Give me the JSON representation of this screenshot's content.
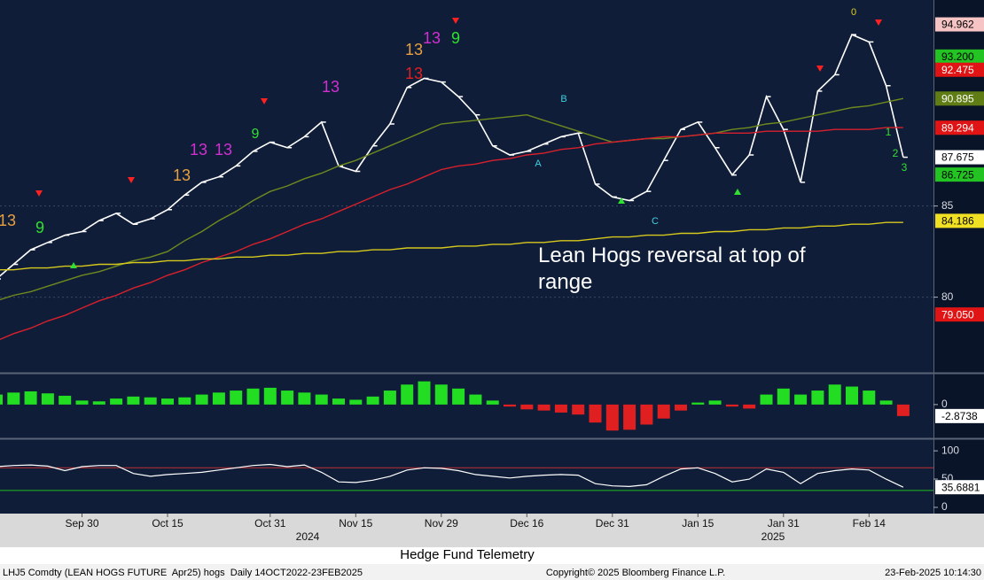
{
  "chart_data": [
    {
      "type": "line",
      "categories": [
        null,
        null,
        null,
        null,
        null,
        "Sep 30",
        null,
        null,
        null,
        null,
        "Oct 15",
        null,
        null,
        null,
        null,
        null,
        "Oct 31",
        null,
        null,
        null,
        null,
        "Nov 15",
        null,
        null,
        null,
        null,
        "Nov 29",
        null,
        null,
        null,
        null,
        "Dec 16",
        null,
        null,
        null,
        null,
        "Dec 31",
        null,
        null,
        null,
        null,
        "Jan 15",
        null,
        null,
        null,
        null,
        "Jan 31",
        null,
        null,
        null,
        null,
        "Feb 14",
        null,
        null
      ],
      "year_labels": [
        "2024",
        "2025"
      ],
      "series": [
        {
          "color": "#ffffff",
          "values": [
            81.0,
            81.8,
            82.6,
            83.0,
            83.4,
            83.6,
            84.2,
            84.6,
            84.0,
            84.3,
            84.8,
            85.6,
            86.3,
            86.6,
            87.2,
            88.0,
            88.5,
            88.2,
            88.8,
            89.6,
            87.2,
            86.9,
            88.3,
            89.5,
            91.5,
            92.0,
            91.8,
            91.0,
            90.0,
            88.3,
            87.8,
            88.0,
            88.4,
            88.8,
            89.0,
            86.2,
            85.5,
            85.3,
            85.8,
            87.5,
            89.2,
            89.6,
            88.2,
            86.7,
            87.8,
            91.0,
            89.2,
            86.3,
            91.3,
            92.2,
            94.4,
            94.0,
            91.6,
            87.675
          ]
        },
        {
          "color": "#6f8a1e",
          "values": [
            79.8,
            80.1,
            80.3,
            80.6,
            80.9,
            81.2,
            81.4,
            81.7,
            82.0,
            82.2,
            82.5,
            83.1,
            83.6,
            84.2,
            84.7,
            85.3,
            85.8,
            86.1,
            86.5,
            86.8,
            87.2,
            87.5,
            87.9,
            88.3,
            88.7,
            89.1,
            89.5,
            89.6,
            89.7,
            89.8,
            89.9,
            90.0,
            89.7,
            89.4,
            89.1,
            88.8,
            88.5,
            88.6,
            88.7,
            88.7,
            88.8,
            88.9,
            89.0,
            89.2,
            89.3,
            89.5,
            89.6,
            89.8,
            90.0,
            90.2,
            90.4,
            90.5,
            90.7,
            90.9
          ]
        },
        {
          "color": "#d8202c",
          "values": [
            77.6,
            78.0,
            78.3,
            78.7,
            79.0,
            79.4,
            79.8,
            80.1,
            80.5,
            80.8,
            81.2,
            81.5,
            81.9,
            82.2,
            82.5,
            82.9,
            83.2,
            83.6,
            84.0,
            84.3,
            84.7,
            85.1,
            85.5,
            85.9,
            86.2,
            86.6,
            87.0,
            87.2,
            87.3,
            87.5,
            87.6,
            87.8,
            87.9,
            88.1,
            88.2,
            88.4,
            88.5,
            88.6,
            88.7,
            88.8,
            88.8,
            88.9,
            89.0,
            89.0,
            89.0,
            89.1,
            89.1,
            89.1,
            89.1,
            89.2,
            89.2,
            89.2,
            89.3,
            89.3
          ]
        },
        {
          "color": "#d6c81c",
          "values": [
            81.5,
            81.5,
            81.6,
            81.6,
            81.7,
            81.7,
            81.8,
            81.8,
            81.9,
            81.9,
            82.0,
            82.0,
            82.1,
            82.1,
            82.2,
            82.2,
            82.3,
            82.3,
            82.4,
            82.4,
            82.5,
            82.5,
            82.6,
            82.6,
            82.7,
            82.7,
            82.7,
            82.8,
            82.8,
            82.9,
            82.9,
            83.0,
            83.0,
            83.1,
            83.1,
            83.2,
            83.3,
            83.3,
            83.4,
            83.4,
            83.5,
            83.5,
            83.6,
            83.6,
            83.7,
            83.7,
            83.8,
            83.8,
            83.9,
            83.9,
            84.0,
            84.0,
            84.1,
            84.1
          ]
        }
      ],
      "ylim": [
        75.9,
        96.3
      ],
      "yticks": [
        80,
        85
      ],
      "grid": true,
      "flags": [
        94.962,
        {
          "value": 93.2,
          "label": "93.200"
        },
        92.475,
        90.895,
        89.294,
        87.675,
        86.725,
        84.186,
        {
          "value": 79.05,
          "label": "79.050"
        }
      ],
      "flag_colors": [
        "#f6c4c4",
        "#22c322",
        "#e01414",
        "#5f7d14",
        "#e01414",
        "#ffffff",
        "#22c322",
        "#f0e024",
        "#e01414"
      ],
      "annotation": "Lean Hogs reversal at top of range",
      "td_counts": [
        {
          "text": "13",
          "color": "#e8a040"
        },
        {
          "text": "9",
          "color": "#30e030"
        },
        {
          "text": "13",
          "color": "#e8a040"
        },
        {
          "text": "13",
          "color": "#d030d0"
        },
        {
          "text": "13",
          "color": "#d030d0"
        },
        {
          "text": "9",
          "color": "#30e030"
        },
        {
          "text": "13",
          "color": "#d030d0"
        },
        {
          "text": "13",
          "color": "#e8a040"
        },
        {
          "text": "13",
          "color": "#d030d0"
        },
        {
          "text": "9",
          "color": "#30e030"
        },
        {
          "text": "13",
          "color": "#e02020"
        },
        {
          "text": "A",
          "color": "#40d0e0"
        },
        {
          "text": "B",
          "color": "#40d0e0"
        },
        {
          "text": "C",
          "color": "#40d0e0"
        },
        {
          "text": "0",
          "color": "#e0d020"
        },
        {
          "text": "1",
          "color": "#30e030"
        },
        {
          "text": "2",
          "color": "#30e030"
        },
        {
          "text": "3",
          "color": "#30e030"
        }
      ]
    },
    {
      "type": "bar",
      "values": [
        2.5,
        3.0,
        3.3,
        2.8,
        2.2,
        1.0,
        0.8,
        1.5,
        2.0,
        1.8,
        1.5,
        1.8,
        2.5,
        3.0,
        3.5,
        4.0,
        4.2,
        3.5,
        3.0,
        2.5,
        1.5,
        1.2,
        2.0,
        3.5,
        5.0,
        5.8,
        5.0,
        4.0,
        2.5,
        1.0,
        -0.5,
        -1.2,
        -1.5,
        -2.0,
        -2.5,
        -4.5,
        -6.5,
        -6.3,
        -5.0,
        -3.5,
        -1.5,
        0.5,
        1.0,
        -0.5,
        -1.0,
        2.5,
        4.0,
        2.5,
        3.5,
        5.0,
        4.5,
        3.5,
        1.0,
        -2.8738
      ],
      "up_color": "#22dd22",
      "down_color": "#e02020",
      "ylim": [
        -8.0,
        7.5
      ],
      "yticks": [
        0
      ],
      "flags": [
        -2.8738
      ],
      "flag_colors": [
        "#ffffff"
      ]
    },
    {
      "type": "line",
      "values": [
        72,
        74,
        75,
        73,
        65,
        72,
        74,
        74,
        60,
        55,
        58,
        60,
        62,
        66,
        70,
        74,
        76,
        72,
        75,
        62,
        45,
        44,
        48,
        55,
        66,
        70,
        69,
        65,
        58,
        55,
        52,
        55,
        57,
        58,
        57,
        42,
        38,
        37,
        40,
        55,
        68,
        70,
        60,
        45,
        50,
        68,
        62,
        42,
        60,
        65,
        68,
        66,
        50,
        35.6881
      ],
      "color": "#ffffff",
      "ylim": [
        -11,
        119
      ],
      "yticks": [
        0,
        50,
        100
      ],
      "levels": [
        {
          "value": 70,
          "color": "#c03030"
        },
        {
          "value": 30,
          "color": "#20c020"
        }
      ],
      "flags": [
        35.6881
      ],
      "flag_colors": [
        "#ffffff"
      ]
    }
  ],
  "footer": {
    "title": "Hedge Fund Telemetry",
    "ticker": "LHJ5 Comdty (LEAN HOGS FUTURE  Apr25) hogs  Daily 14OCT2022-23FEB2025",
    "copyright": "Copyright© 2025 Bloomberg Finance L.P.",
    "timestamp": "23-Feb-2025 10:14:30"
  }
}
